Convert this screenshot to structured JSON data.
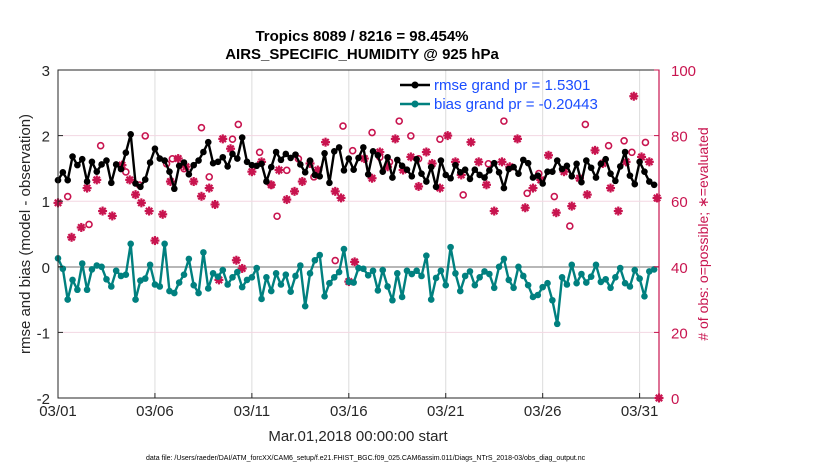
{
  "chart_data": {
    "type": "line",
    "title": [
      "Tropics 8089 / 8216 = 98.454%",
      "AIRS_SPECIFIC_HUMIDITY @ 925 hPa"
    ],
    "xlabel": "Mar.01,2018 00:00:00 start",
    "ylabel": "rmse and bias (model - observation)",
    "ylabel_right": "# of obs: o=possible; ∗=evaluated",
    "xlim_days": [
      0,
      31
    ],
    "ylim": [
      -2,
      3
    ],
    "ylim_right": [
      0,
      100
    ],
    "x_ticks": [
      {
        "day": 0,
        "label": "03/01"
      },
      {
        "day": 5,
        "label": "03/06"
      },
      {
        "day": 10,
        "label": "03/11"
      },
      {
        "day": 15,
        "label": "03/16"
      },
      {
        "day": 20,
        "label": "03/21"
      },
      {
        "day": 25,
        "label": "03/26"
      },
      {
        "day": 30,
        "label": "03/31"
      }
    ],
    "y_ticks": [
      3,
      2,
      1,
      0,
      -1,
      -2
    ],
    "y_ticks_right": [
      100,
      80,
      60,
      40,
      20,
      0
    ],
    "grid": true,
    "legend": {
      "placement": "top-right",
      "entries": [
        {
          "name": "rmse grand pr = 1.5301",
          "color": "#000000"
        },
        {
          "name": "bias grand pr = -0.20443",
          "color": "#00807f"
        }
      ]
    },
    "time_step_days": 0.25,
    "series": [
      {
        "name": "rmse",
        "color": "#000000",
        "values": [
          1.32,
          1.44,
          1.32,
          1.68,
          1.55,
          1.64,
          1.3,
          1.6,
          1.45,
          1.56,
          1.62,
          1.28,
          1.56,
          1.49,
          1.74,
          2.02,
          1.27,
          1.22,
          1.33,
          1.59,
          1.8,
          1.65,
          1.62,
          1.45,
          1.19,
          1.54,
          1.59,
          1.41,
          1.55,
          1.62,
          1.75,
          1.9,
          1.58,
          1.6,
          1.67,
          1.53,
          1.72,
          1.65,
          1.97,
          1.6,
          1.55,
          1.54,
          1.57,
          1.3,
          1.52,
          1.75,
          1.63,
          1.72,
          1.66,
          1.71,
          1.56,
          1.44,
          1.62,
          1.4,
          1.38,
          1.73,
          1.28,
          1.76,
          1.82,
          1.47,
          1.65,
          1.48,
          1.66,
          1.82,
          1.41,
          1.76,
          1.7,
          1.45,
          1.67,
          1.36,
          1.63,
          1.54,
          1.48,
          1.38,
          1.64,
          1.42,
          1.3,
          1.52,
          1.22,
          1.62,
          1.4,
          1.35,
          1.55,
          1.44,
          1.48,
          1.34,
          1.48,
          1.4,
          1.36,
          1.47,
          1.58,
          1.44,
          1.2,
          1.49,
          1.52,
          1.42,
          1.63,
          1.58,
          1.36,
          1.39,
          1.27,
          1.45,
          1.45,
          1.62,
          1.49,
          1.54,
          1.38,
          1.57,
          1.29,
          1.62,
          1.51,
          1.36,
          1.57,
          1.64,
          1.42,
          1.31,
          1.53,
          1.75,
          1.39,
          1.26,
          1.6,
          1.45,
          1.3,
          1.25
        ]
      },
      {
        "name": "bias",
        "color": "#00807f",
        "values": [
          0.13,
          -0.03,
          -0.5,
          -0.2,
          -0.35,
          0.05,
          -0.35,
          -0.04,
          0.02,
          0.0,
          -0.19,
          -0.3,
          -0.06,
          -0.14,
          -0.12,
          0.35,
          -0.5,
          -0.21,
          -0.18,
          0.03,
          -0.27,
          -0.3,
          0.35,
          -0.37,
          -0.4,
          -0.24,
          -0.12,
          0.12,
          -0.28,
          -0.4,
          0.22,
          -0.33,
          -0.1,
          -0.15,
          -0.05,
          -0.27,
          -0.16,
          -0.08,
          -0.31,
          -0.2,
          -0.16,
          -0.02,
          -0.49,
          -0.16,
          -0.37,
          -0.1,
          -0.27,
          -0.12,
          -0.38,
          -0.14,
          0.02,
          -0.6,
          -0.1,
          0.1,
          0.18,
          -0.45,
          -0.25,
          -0.16,
          -0.08,
          0.27,
          -0.23,
          -0.24,
          -0.02,
          -0.03,
          -0.13,
          -0.06,
          -0.36,
          -0.05,
          -0.3,
          -0.51,
          -0.1,
          -0.46,
          -0.06,
          -0.11,
          -0.06,
          -0.14,
          0.17,
          -0.5,
          -0.17,
          -0.06,
          -0.28,
          0.3,
          -0.1,
          -0.37,
          -0.14,
          -0.07,
          -0.28,
          -0.16,
          -0.07,
          -0.11,
          -0.32,
          0.0,
          0.12,
          -0.2,
          -0.32,
          0.0,
          -0.14,
          -0.28,
          -0.46,
          -0.43,
          -0.31,
          -0.25,
          -0.51,
          -0.87,
          -0.16,
          -0.27,
          0.03,
          -0.25,
          -0.11,
          -0.24,
          -0.15,
          0.03,
          -0.23,
          -0.19,
          -0.32,
          -0.16,
          -0.02,
          -0.25,
          -0.3,
          -0.05,
          -0.18,
          -0.45,
          -0.07,
          -0.04
        ]
      },
      {
        "name": "obs possible",
        "axis": "right",
        "marker": "o",
        "color": "#c8144f",
        "x_days": [
          0.5,
          1.6,
          2.2,
          3.5,
          4.2,
          4.5,
          5.6,
          5.9,
          6.5,
          7.4,
          7.8,
          9.0,
          9.3,
          10.4,
          11.0,
          11.3,
          11.8,
          12.4,
          13.2,
          14.3,
          14.7,
          15.2,
          16.2,
          16.6,
          17.1,
          17.6,
          18.2,
          18.6,
          19.7,
          20.9,
          22.2,
          23.0,
          24.2,
          24.8,
          25.6,
          26.4,
          27.2,
          28.4,
          29.2,
          29.6,
          30.3
        ],
        "values": [
          60.5,
          52.0,
          76.0,
          68.0,
          64.0,
          79.0,
          70.5,
          72.0,
          69.0,
          81.5,
          66.5,
          78.0,
          82.5,
          74.0,
          64.0,
          54.5,
          68.5,
          72.0,
          66.5,
          41.0,
          82.0,
          74.5,
          80.0,
          72.5,
          71.0,
          83.5,
          79.0,
          72.0,
          78.0,
          61.0,
          70.5,
          83.5,
          61.5,
          67.5,
          60.5,
          51.5,
          82.5,
          76.0,
          77.5,
          74.0,
          77.0
        ]
      },
      {
        "name": "obs evaluated",
        "axis": "right",
        "marker": "*",
        "color": "#c8144f",
        "x_days": [
          0.0,
          0.7,
          1.2,
          1.5,
          2.0,
          2.3,
          2.8,
          3.3,
          3.7,
          4.0,
          4.3,
          4.7,
          5.0,
          5.4,
          5.8,
          6.2,
          6.6,
          7.0,
          7.4,
          7.8,
          8.1,
          8.3,
          8.5,
          8.9,
          9.2,
          9.5,
          10.0,
          10.5,
          11.0,
          11.4,
          11.8,
          12.2,
          12.6,
          13.0,
          13.4,
          13.8,
          14.3,
          14.6,
          15.0,
          15.3,
          15.8,
          16.2,
          16.6,
          17.0,
          17.4,
          17.8,
          18.2,
          18.6,
          19.0,
          19.3,
          19.7,
          20.1,
          20.5,
          20.8,
          21.3,
          21.7,
          22.1,
          22.5,
          22.9,
          23.3,
          23.7,
          24.1,
          24.5,
          24.9,
          25.3,
          25.7,
          26.1,
          26.5,
          26.9,
          27.3,
          27.7,
          28.1,
          28.5,
          28.9,
          29.3,
          29.7,
          30.1,
          30.5,
          30.9,
          31.0
        ],
        "values": [
          59.5,
          49.0,
          52.0,
          64.0,
          66.5,
          57.0,
          55.5,
          71.0,
          66.5,
          62.0,
          59.5,
          57.0,
          48.0,
          56.0,
          66.0,
          73.0,
          70.5,
          66.0,
          61.5,
          64.0,
          59.0,
          36.0,
          79.0,
          76.0,
          42.0,
          39.5,
          69.0,
          72.0,
          65.0,
          69.5,
          60.5,
          63.0,
          66.0,
          71.5,
          69.5,
          78.0,
          63.0,
          61.0,
          35.5,
          41.5,
          73.0,
          67.0,
          75.0,
          70.5,
          79.0,
          69.5,
          73.5,
          64.5,
          75.0,
          71.5,
          64.0,
          80.0,
          72.0,
          68.0,
          78.0,
          72.0,
          65.0,
          57.0,
          72.0,
          70.5,
          79.0,
          58.0,
          64.0,
          66.5,
          74.0,
          56.5,
          69.0,
          58.5,
          67.0,
          62.0,
          75.5,
          71.5,
          64.0,
          57.0,
          72.0,
          92.0,
          73.5,
          72.0,
          61.0,
          0.0
        ]
      }
    ]
  },
  "footer": "data file: /Users/raeder/DAI/ATM_forcXX/CAM6_setup/f.e21.FHIST_BGC.f09_025.CAM6assim.011/Diags_NTrS_2018-03/obs_diag_output.nc"
}
